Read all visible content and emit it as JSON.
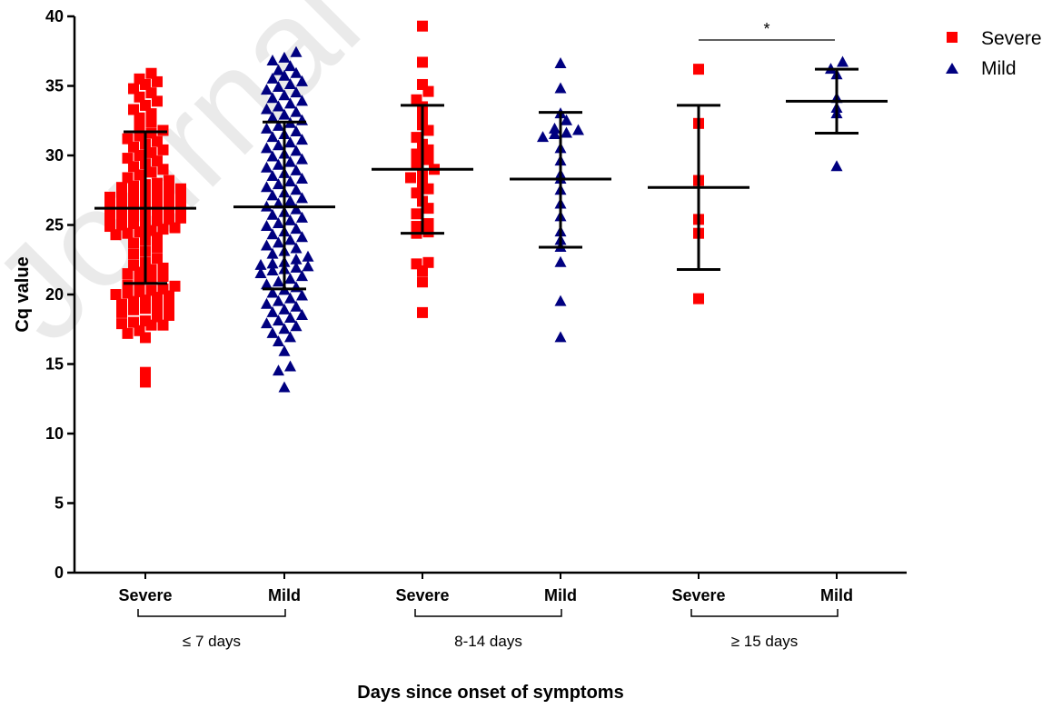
{
  "chart_data": {
    "type": "scatter",
    "title": "",
    "xlabel": "Days since onset of symptoms",
    "ylabel": "Cq value",
    "ylim": [
      0,
      40
    ],
    "yticks": [
      0,
      5,
      10,
      15,
      20,
      25,
      30,
      35,
      40
    ],
    "ytick_labels": [
      "0",
      "5",
      "10",
      "15",
      "20",
      "25",
      "30",
      "35",
      "40"
    ],
    "grid": false,
    "legend_position": "top-right",
    "watermark": "Journal",
    "colors": {
      "Severe": "#ff0000",
      "Mild": "#000080"
    },
    "series": [
      {
        "name": "Severe",
        "marker": "square",
        "color": "#ff0000"
      },
      {
        "name": "Mild",
        "marker": "triangle",
        "color": "#000080"
      }
    ],
    "groups": [
      {
        "label": "≤ 7 days",
        "categories": [
          "Severe",
          "Mild"
        ]
      },
      {
        "label": "8-14 days",
        "categories": [
          "Severe",
          "Mild"
        ]
      },
      {
        "label": "≥ 15 days",
        "categories": [
          "Severe",
          "Mild"
        ]
      }
    ],
    "columns": [
      {
        "category": "Severe",
        "group": "≤ 7 days",
        "series": "Severe",
        "mean": 26.2,
        "sd_low": 20.8,
        "sd_high": 31.7,
        "values": [
          13.7,
          14.4,
          16.9,
          17.2,
          17.4,
          17.8,
          17.8,
          17.9,
          18.0,
          18.1,
          18.4,
          18.5,
          18.7,
          18.9,
          19.0,
          19.1,
          19.2,
          19.3,
          19.5,
          19.6,
          19.8,
          19.9,
          20.0,
          20.1,
          20.2,
          20.3,
          20.4,
          20.6,
          20.7,
          20.9,
          21.1,
          21.3,
          21.5,
          21.6,
          21.8,
          21.9,
          22.1,
          22.3,
          22.6,
          22.9,
          23.1,
          23.4,
          23.7,
          23.9,
          24.1,
          24.3,
          24.4,
          24.5,
          24.6,
          24.7,
          24.8,
          24.9,
          25.0,
          25.1,
          25.2,
          25.3,
          25.4,
          25.5,
          25.6,
          25.7,
          25.8,
          25.9,
          26.0,
          26.1,
          26.2,
          26.3,
          26.4,
          26.5,
          26.6,
          26.7,
          26.8,
          26.9,
          27.0,
          27.1,
          27.2,
          27.3,
          27.4,
          27.5,
          27.6,
          27.7,
          27.8,
          27.9,
          28.0,
          28.2,
          28.4,
          28.6,
          28.8,
          29.0,
          29.2,
          29.4,
          29.6,
          29.8,
          30.0,
          30.2,
          30.4,
          30.6,
          30.8,
          31.0,
          31.2,
          31.4,
          31.6,
          31.8,
          32.1,
          32.4,
          32.7,
          33.0,
          33.3,
          33.6,
          33.9,
          34.2,
          34.5,
          34.8,
          35.1,
          35.3,
          35.5,
          35.9
        ]
      },
      {
        "category": "Mild",
        "group": "≤ 7 days",
        "series": "Mild",
        "mean": 26.3,
        "sd_low": 20.4,
        "sd_high": 32.4,
        "values": [
          13.3,
          14.5,
          14.8,
          15.9,
          16.6,
          16.9,
          17.2,
          17.5,
          17.7,
          17.9,
          18.1,
          18.3,
          18.5,
          18.7,
          18.9,
          19.1,
          19.3,
          19.5,
          19.7,
          19.9,
          20.1,
          20.3,
          20.5,
          20.7,
          20.9,
          21.1,
          21.3,
          21.5,
          21.7,
          21.8,
          21.9,
          22.0,
          22.1,
          22.2,
          22.3,
          22.5,
          22.7,
          22.9,
          23.1,
          23.3,
          23.5,
          23.7,
          23.9,
          24.1,
          24.3,
          24.5,
          24.7,
          24.9,
          25.1,
          25.3,
          25.5,
          25.7,
          25.9,
          26.1,
          26.3,
          26.5,
          26.7,
          26.9,
          27.1,
          27.3,
          27.5,
          27.7,
          27.9,
          28.1,
          28.3,
          28.5,
          28.7,
          28.9,
          29.1,
          29.3,
          29.5,
          29.7,
          29.9,
          30.1,
          30.3,
          30.5,
          30.7,
          30.9,
          31.1,
          31.3,
          31.5,
          31.7,
          31.9,
          32.1,
          32.3,
          32.5,
          32.7,
          32.9,
          33.1,
          33.3,
          33.5,
          33.7,
          33.9,
          34.1,
          34.3,
          34.5,
          34.7,
          34.9,
          35.1,
          35.3,
          35.5,
          35.7,
          35.9,
          36.1,
          36.4,
          36.8,
          37.0,
          37.4
        ]
      },
      {
        "category": "Severe",
        "group": "8-14 days",
        "series": "Severe",
        "mean": 29.0,
        "sd_low": 24.4,
        "sd_high": 33.6,
        "values": [
          18.7,
          20.9,
          21.7,
          22.2,
          22.3,
          24.4,
          24.5,
          24.9,
          25.1,
          25.8,
          26.2,
          26.7,
          27.3,
          27.6,
          28.0,
          28.4,
          28.6,
          29.0,
          29.4,
          29.7,
          30.1,
          30.4,
          30.8,
          31.3,
          31.8,
          32.2,
          32.8,
          33.5,
          34.0,
          34.6,
          35.1,
          36.7,
          39.3
        ]
      },
      {
        "category": "Mild",
        "group": "8-14 days",
        "series": "Mild",
        "mean": 28.3,
        "sd_low": 23.4,
        "sd_high": 33.1,
        "values": [
          16.9,
          19.5,
          22.3,
          23.4,
          23.9,
          24.5,
          25.6,
          26.5,
          27.5,
          28.3,
          28.6,
          29.6,
          30.5,
          31.3,
          31.5,
          31.6,
          31.8,
          31.9,
          32.5,
          33.0,
          34.8,
          36.6
        ]
      },
      {
        "category": "Severe",
        "group": "≥ 15 days",
        "series": "Severe",
        "mean": 27.7,
        "sd_low": 21.8,
        "sd_high": 33.6,
        "values": [
          19.7,
          24.4,
          25.4,
          28.2,
          32.3,
          36.2
        ]
      },
      {
        "category": "Mild",
        "group": "≥ 15 days",
        "series": "Mild",
        "mean": 33.9,
        "sd_low": 31.6,
        "sd_high": 36.2,
        "values": [
          29.2,
          33.0,
          33.4,
          34.1,
          35.8,
          36.2,
          36.7
        ]
      }
    ],
    "annotations": [
      {
        "text": "*",
        "between": "≥ 15 days: Severe vs Mild"
      }
    ]
  }
}
